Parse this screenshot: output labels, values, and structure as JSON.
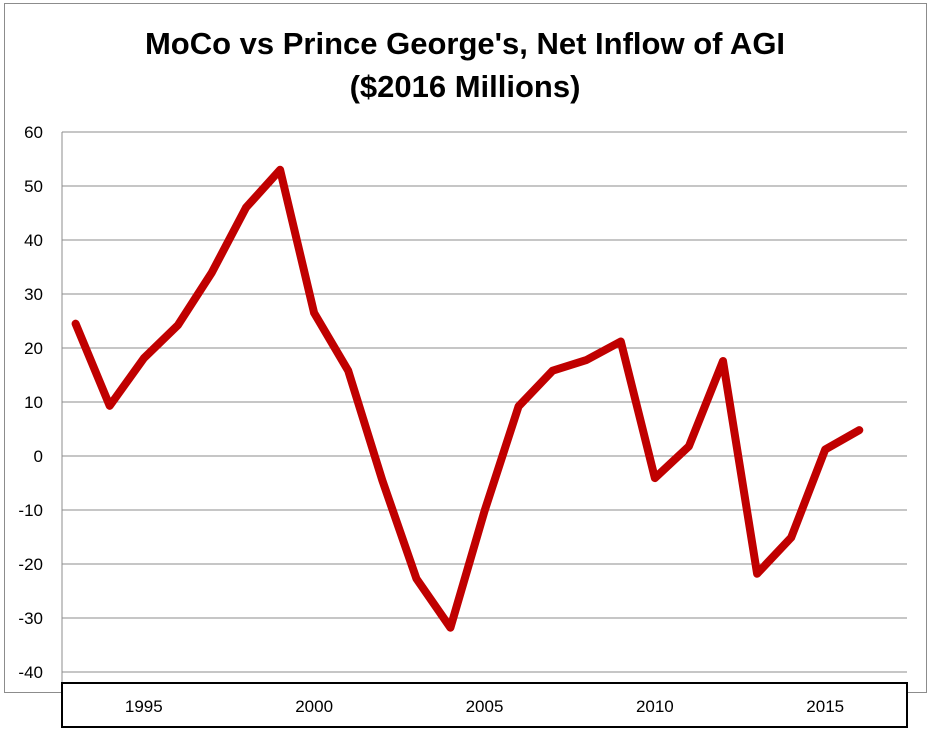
{
  "chart_data": {
    "type": "line",
    "title": "MoCo vs Prince George's, Net Inflow of AGI",
    "subtitle": "($2016 Millions)",
    "xlabel": "",
    "ylabel": "",
    "ylim": [
      -40,
      60
    ],
    "yticks": [
      60,
      50,
      40,
      30,
      20,
      10,
      0,
      -10,
      -20,
      -30,
      -40
    ],
    "xticks": [
      {
        "value": 1995,
        "label": "1995"
      },
      {
        "value": 2000,
        "label": "2000"
      },
      {
        "value": 2005,
        "label": "2005"
      },
      {
        "value": 2010,
        "label": "2010"
      },
      {
        "value": 2015,
        "label": "2015"
      }
    ],
    "xlim": [
      1992.6,
      2017.4
    ],
    "grid": true,
    "legend": "none",
    "series": [
      {
        "color": "#c00000",
        "x": [
          1993,
          1994,
          1995,
          1996,
          1997,
          1998,
          1999,
          2000,
          2001,
          2002,
          2003,
          2004,
          2005,
          2006,
          2007,
          2008,
          2009,
          2010,
          2011,
          2012,
          2013,
          2014,
          2015,
          2016
        ],
        "y": [
          24.5,
          9.3,
          18.1,
          24.2,
          34,
          46,
          53,
          26.5,
          15.8,
          -4.5,
          -22.7,
          -31.8,
          -10.2,
          9.2,
          15.8,
          17.8,
          21.2,
          -4.1,
          1.8,
          17.6,
          -21.8,
          -15.1,
          1.2,
          4.8
        ]
      }
    ]
  }
}
